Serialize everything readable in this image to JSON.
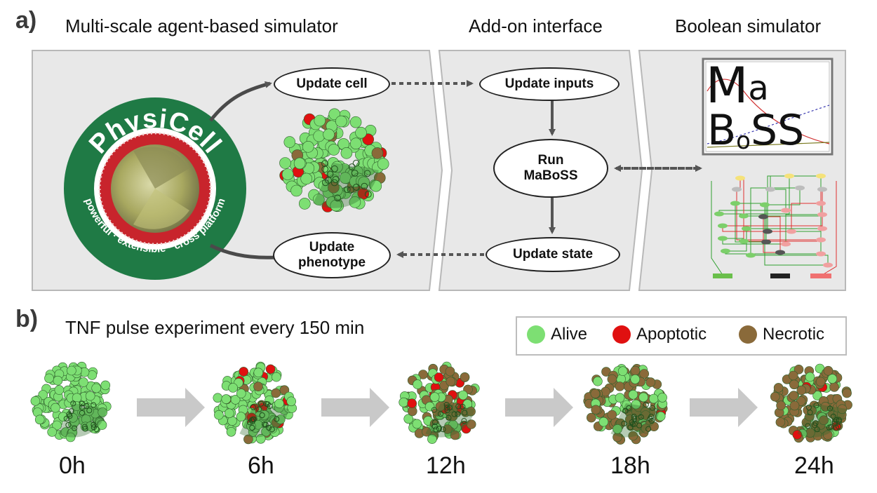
{
  "panels": {
    "a_label": "a)",
    "b_label": "b)"
  },
  "sections": {
    "agent": "Multi-scale agent-based simulator",
    "addon": "Add-on interface",
    "boolean": "Boolean simulator"
  },
  "physicell_logo": {
    "name": "PhysiCell",
    "tagline": "powerful · extensible · cross platform"
  },
  "maboss_logo": {
    "text": "MaBoSS"
  },
  "nodes": {
    "update_cell": "Update cell",
    "update_inputs": "Update inputs",
    "run": "Run",
    "maboss": "MaBoSS",
    "update_state": "Update state",
    "update": "Update",
    "phenotype": "phenotype"
  },
  "experiment": {
    "title": "TNF pulse experiment every 150 min"
  },
  "legend": [
    {
      "label": "Alive",
      "color": "#7ddf73"
    },
    {
      "label": "Apoptotic",
      "color": "#e01010"
    },
    {
      "label": "Necrotic",
      "color": "#8a6a3a"
    }
  ],
  "timepoints": [
    "0h",
    "6h",
    "12h",
    "18h",
    "24h"
  ],
  "colors": {
    "panel_bg": "#e8e8e8",
    "physicell_green": "#1f7a45",
    "cell_green": "#7ddf73",
    "apoptotic_red": "#e01010",
    "necrotic_brown": "#8a6a3a",
    "arrow_gray": "#555555"
  }
}
